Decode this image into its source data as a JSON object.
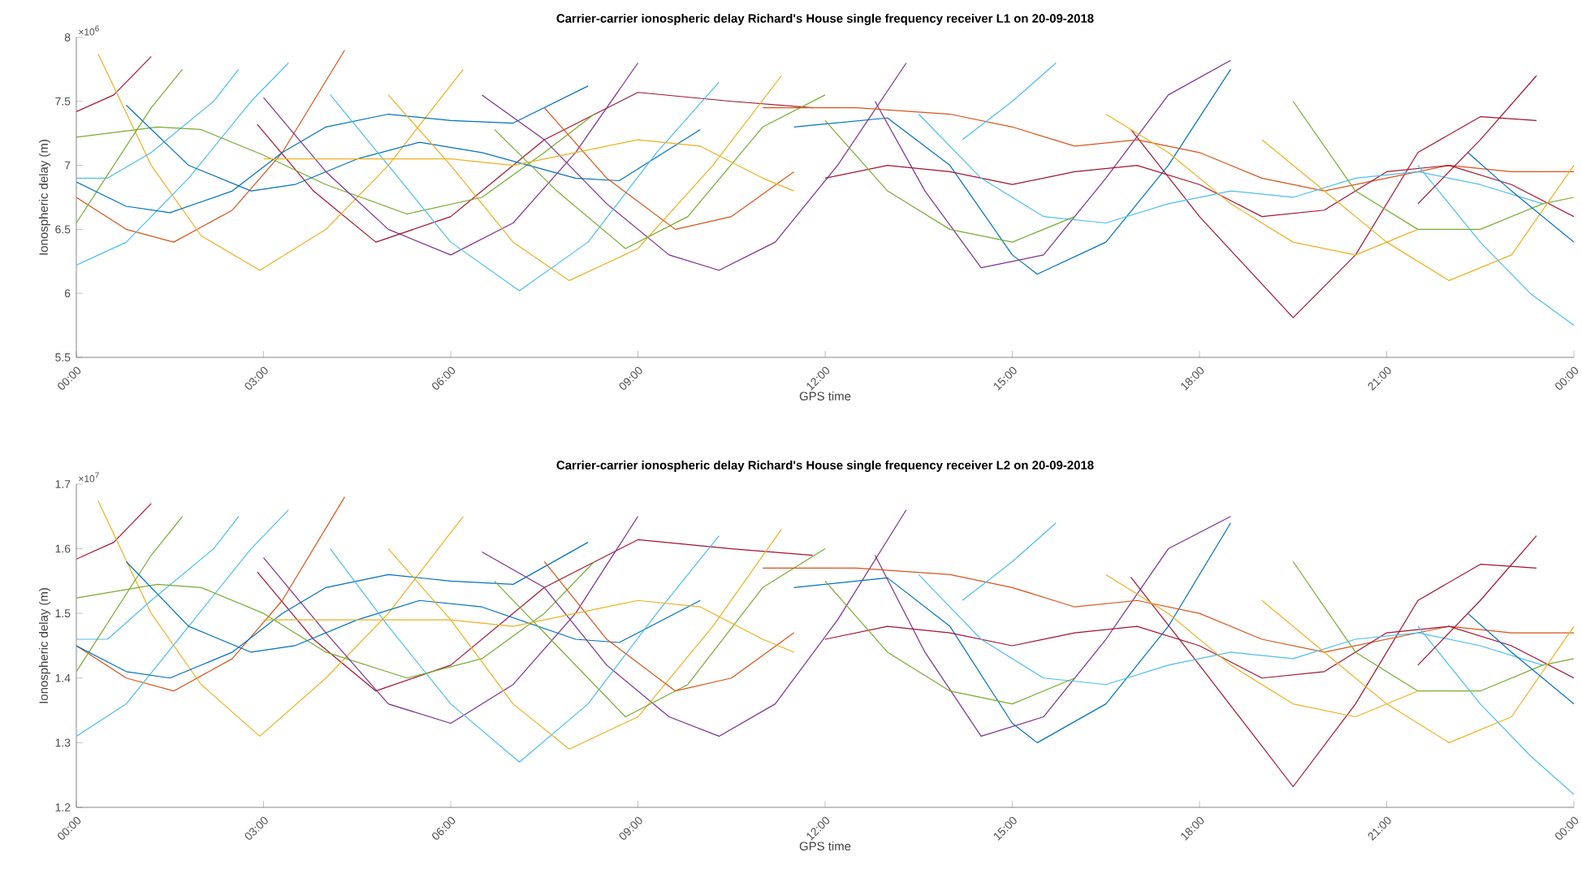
{
  "chart_data": [
    {
      "type": "line",
      "title": "Carrier-carrier ionospheric delay Richard's House single frequency receiver L1 on 20-09-2018",
      "xlabel": "GPS time",
      "ylabel": "Ionospheric delay (m)",
      "annotations": [
        "×10$^{6}$"
      ],
      "xlim": [
        0,
        24
      ],
      "xticks": [
        {
          "value": 0,
          "label": "00:00"
        },
        {
          "value": 3,
          "label": "03:00"
        },
        {
          "value": 6,
          "label": "06:00"
        },
        {
          "value": 9,
          "label": "09:00"
        },
        {
          "value": 12,
          "label": "12:00"
        },
        {
          "value": 15,
          "label": "15:00"
        },
        {
          "value": 18,
          "label": "18:00"
        },
        {
          "value": 21,
          "label": "21:00"
        },
        {
          "value": 24,
          "label": "00:00"
        }
      ],
      "ylim": [
        5.5,
        8
      ],
      "yticks": [
        5.5,
        6,
        6.5,
        7,
        7.5,
        8
      ],
      "series": [
        {
          "color": "#a2142f",
          "x": [
            2.9,
            3.8,
            4.8,
            6,
            7.5,
            9,
            10.5,
            11.8
          ],
          "values": [
            7.32,
            6.8,
            6.4,
            6.6,
            7.2,
            7.57,
            7.5,
            7.45
          ]
        },
        {
          "color": "#a2142f",
          "x": [
            16.9,
            18,
            19.5,
            20.5,
            21.5,
            22.5,
            23.4
          ],
          "values": [
            7.28,
            6.6,
            5.81,
            6.3,
            7.1,
            7.38,
            7.35
          ]
        },
        {
          "color": "#d95319",
          "x": [
            0,
            0.8,
            1.56,
            2.5,
            3.3,
            4.3
          ],
          "values": [
            6.75,
            6.5,
            6.4,
            6.65,
            7.1,
            7.9
          ]
        },
        {
          "color": "#a2142f",
          "x": [
            0,
            0.6,
            1.2
          ],
          "values": [
            7.42,
            7.55,
            7.85
          ]
        },
        {
          "color": "#edb120",
          "x": [
            0.35,
            1.2,
            2,
            2.94,
            4,
            5,
            6.2
          ],
          "values": [
            7.87,
            7.0,
            6.45,
            6.18,
            6.5,
            7.0,
            7.75
          ]
        },
        {
          "color": "#4dbeee",
          "x": [
            0,
            0.8,
            1.8,
            2.8,
            3.4
          ],
          "values": [
            6.22,
            6.4,
            6.9,
            7.5,
            7.8
          ]
        },
        {
          "color": "#4dbeee",
          "x": [
            0,
            0.5,
            1.2,
            2.2,
            2.6
          ],
          "values": [
            6.9,
            6.9,
            7.1,
            7.5,
            7.75
          ]
        },
        {
          "color": "#77ac30",
          "x": [
            0,
            0.6,
            1.2,
            1.7
          ],
          "values": [
            6.55,
            7.0,
            7.45,
            7.75
          ]
        },
        {
          "color": "#77ac30",
          "x": [
            0,
            1.3,
            2,
            3,
            4,
            5.3,
            6.5,
            7.5,
            8.3
          ],
          "values": [
            7.22,
            7.3,
            7.28,
            7.08,
            6.85,
            6.62,
            6.75,
            7.1,
            7.4
          ]
        },
        {
          "color": "#0072bd",
          "x": [
            0.8,
            1.8,
            2.8,
            3.5,
            4.5,
            5.5,
            6.5,
            8,
            8.7,
            10
          ],
          "values": [
            7.47,
            7.0,
            6.8,
            6.85,
            7.05,
            7.18,
            7.1,
            6.9,
            6.88,
            7.28
          ]
        },
        {
          "color": "#0072bd",
          "x": [
            0,
            0.8,
            1.5,
            2.5,
            3.3,
            4,
            5,
            6,
            7,
            8.2
          ],
          "values": [
            6.87,
            6.68,
            6.63,
            6.8,
            7.1,
            7.3,
            7.4,
            7.35,
            7.33,
            7.62
          ]
        },
        {
          "color": "#7e2f8e",
          "x": [
            3,
            4,
            5,
            6,
            7,
            8,
            9
          ],
          "values": [
            7.53,
            6.95,
            6.5,
            6.3,
            6.55,
            7.1,
            7.8
          ]
        },
        {
          "color": "#7e2f8e",
          "x": [
            6.5,
            7.5,
            8.5,
            9.5,
            10.3,
            11.2,
            12.2,
            13.3
          ],
          "values": [
            7.55,
            7.2,
            6.7,
            6.3,
            6.18,
            6.4,
            7.0,
            7.8
          ]
        },
        {
          "color": "#4dbeee",
          "x": [
            4.07,
            5,
            6,
            7.1,
            8.2,
            9.3,
            10.3
          ],
          "values": [
            7.55,
            7.0,
            6.4,
            6.02,
            6.4,
            7.1,
            7.65
          ]
        },
        {
          "color": "#edb120",
          "x": [
            5,
            6,
            7,
            7.9,
            9,
            10.2,
            11.3
          ],
          "values": [
            7.55,
            7.0,
            6.4,
            6.1,
            6.35,
            7.0,
            7.7
          ]
        },
        {
          "color": "#77ac30",
          "x": [
            6.7,
            7.7,
            8.8,
            9.8,
            11,
            12
          ],
          "values": [
            7.28,
            6.8,
            6.35,
            6.6,
            7.3,
            7.55
          ]
        },
        {
          "color": "#d95319",
          "x": [
            7.5,
            8.5,
            9.6,
            10.5,
            11.5
          ],
          "values": [
            7.45,
            6.9,
            6.5,
            6.6,
            6.95
          ]
        },
        {
          "color": "#edb120",
          "x": [
            3,
            4,
            5,
            6,
            7,
            8,
            9,
            10,
            11,
            11.5
          ],
          "values": [
            7.05,
            7.05,
            7.05,
            7.05,
            7.0,
            7.1,
            7.2,
            7.15,
            6.9,
            6.8
          ]
        },
        {
          "color": "#0072bd",
          "x": [
            11.5,
            13,
            14,
            15,
            15.4,
            16.5,
            17.5,
            18.5
          ],
          "values": [
            7.3,
            7.37,
            7.0,
            6.3,
            6.15,
            6.4,
            7.0,
            7.75
          ]
        },
        {
          "color": "#7e2f8e",
          "x": [
            12.8,
            13.6,
            14.5,
            15.5,
            16.5,
            17.5,
            18.5
          ],
          "values": [
            7.5,
            6.8,
            6.2,
            6.3,
            6.9,
            7.55,
            7.82
          ]
        },
        {
          "color": "#d95319",
          "x": [
            11,
            12.5,
            14,
            15,
            16,
            17,
            18,
            19,
            20,
            21,
            22,
            23,
            24
          ],
          "values": [
            7.45,
            7.45,
            7.4,
            7.3,
            7.15,
            7.2,
            7.1,
            6.9,
            6.8,
            6.9,
            7.0,
            6.95,
            6.95
          ]
        },
        {
          "color": "#a2142f",
          "x": [
            12,
            13,
            14,
            15,
            16,
            17,
            18,
            19,
            20,
            21,
            22,
            23,
            24
          ],
          "values": [
            6.9,
            7.0,
            6.95,
            6.85,
            6.95,
            7.0,
            6.85,
            6.6,
            6.65,
            6.95,
            7.0,
            6.85,
            6.6
          ]
        },
        {
          "color": "#4dbeee",
          "x": [
            13.5,
            14.5,
            15.5,
            16.5,
            17.5,
            18.5,
            19.5,
            20.5,
            21.5,
            22.5,
            23.5
          ],
          "values": [
            7.4,
            6.9,
            6.6,
            6.55,
            6.7,
            6.8,
            6.75,
            6.9,
            6.95,
            6.85,
            6.7
          ]
        },
        {
          "color": "#77ac30",
          "x": [
            19.5,
            20.5,
            21.5,
            22.5,
            23.5,
            24
          ],
          "values": [
            7.5,
            6.8,
            6.5,
            6.5,
            6.7,
            6.75
          ]
        },
        {
          "color": "#edb120",
          "x": [
            19,
            20,
            21,
            22,
            23,
            24
          ],
          "values": [
            7.2,
            6.8,
            6.4,
            6.1,
            6.3,
            7.0
          ]
        },
        {
          "color": "#4dbeee",
          "x": [
            21.5,
            22.5,
            23.3,
            24
          ],
          "values": [
            7.0,
            6.4,
            6.0,
            5.75
          ]
        },
        {
          "color": "#0072bd",
          "x": [
            22.3,
            23,
            24
          ],
          "values": [
            7.1,
            6.8,
            6.4
          ]
        },
        {
          "color": "#edb120",
          "x": [
            16.5,
            17.5,
            18.5,
            19.5,
            20.5,
            21.5
          ],
          "values": [
            7.4,
            7.1,
            6.7,
            6.4,
            6.3,
            6.5
          ]
        },
        {
          "color": "#a2142f",
          "x": [
            21.5,
            22.5,
            23.4
          ],
          "values": [
            6.7,
            7.2,
            7.7
          ]
        },
        {
          "color": "#4dbeee",
          "x": [
            14.2,
            15,
            15.7
          ],
          "values": [
            7.2,
            7.5,
            7.8
          ]
        },
        {
          "color": "#77ac30",
          "x": [
            12,
            13,
            14,
            15,
            16
          ],
          "values": [
            7.35,
            6.8,
            6.5,
            6.4,
            6.6
          ]
        }
      ]
    },
    {
      "type": "line",
      "title": "Carrier-carrier ionospheric delay Richard's House single frequency receiver L2 on 20-09-2018",
      "xlabel": "GPS time",
      "ylabel": "Ionospheric delay (m)",
      "annotations": [
        "×10$^{7}$"
      ],
      "xlim": [
        0,
        24
      ],
      "xticks": [
        {
          "value": 0,
          "label": "00:00"
        },
        {
          "value": 3,
          "label": "03:00"
        },
        {
          "value": 6,
          "label": "06:00"
        },
        {
          "value": 9,
          "label": "09:00"
        },
        {
          "value": 12,
          "label": "12:00"
        },
        {
          "value": 15,
          "label": "15:00"
        },
        {
          "value": 18,
          "label": "18:00"
        },
        {
          "value": 21,
          "label": "21:00"
        },
        {
          "value": 24,
          "label": "00:00"
        }
      ],
      "ylim": [
        1.2,
        1.7
      ],
      "yticks": [
        1.2,
        1.3,
        1.4,
        1.5,
        1.6,
        1.7
      ],
      "series": [
        {
          "color": "#a2142f",
          "x": [
            2.9,
            3.8,
            4.8,
            6,
            7.5,
            9,
            10.5,
            11.8
          ],
          "values": [
            1.564,
            1.46,
            1.38,
            1.42,
            1.54,
            1.614,
            1.6,
            1.59
          ]
        },
        {
          "color": "#a2142f",
          "x": [
            16.9,
            18,
            19.5,
            20.5,
            21.5,
            22.5,
            23.4
          ],
          "values": [
            1.556,
            1.42,
            1.232,
            1.36,
            1.52,
            1.576,
            1.57
          ]
        },
        {
          "color": "#d95319",
          "x": [
            0,
            0.8,
            1.56,
            2.5,
            3.3,
            4.3
          ],
          "values": [
            1.45,
            1.4,
            1.38,
            1.43,
            1.52,
            1.68
          ]
        },
        {
          "color": "#a2142f",
          "x": [
            0,
            0.6,
            1.2
          ],
          "values": [
            1.584,
            1.61,
            1.67
          ]
        },
        {
          "color": "#edb120",
          "x": [
            0.35,
            1.2,
            2,
            2.94,
            4,
            5,
            6.2
          ],
          "values": [
            1.674,
            1.5,
            1.39,
            1.31,
            1.4,
            1.5,
            1.65
          ]
        },
        {
          "color": "#4dbeee",
          "x": [
            0,
            0.8,
            1.8,
            2.8,
            3.4
          ],
          "values": [
            1.31,
            1.36,
            1.48,
            1.6,
            1.66
          ]
        },
        {
          "color": "#4dbeee",
          "x": [
            0,
            0.5,
            1.2,
            2.2,
            2.6
          ],
          "values": [
            1.46,
            1.46,
            1.52,
            1.6,
            1.65
          ]
        },
        {
          "color": "#77ac30",
          "x": [
            0,
            0.6,
            1.2,
            1.7
          ],
          "values": [
            1.41,
            1.5,
            1.59,
            1.65
          ]
        },
        {
          "color": "#77ac30",
          "x": [
            0,
            1.3,
            2,
            3,
            4,
            5.3,
            6.5,
            7.5,
            8.3
          ],
          "values": [
            1.524,
            1.545,
            1.54,
            1.5,
            1.44,
            1.4,
            1.43,
            1.5,
            1.58
          ]
        },
        {
          "color": "#0072bd",
          "x": [
            0.8,
            1.8,
            2.8,
            3.5,
            4.5,
            5.5,
            6.5,
            8,
            8.7,
            10
          ],
          "values": [
            1.58,
            1.48,
            1.44,
            1.45,
            1.49,
            1.52,
            1.51,
            1.46,
            1.455,
            1.52
          ]
        },
        {
          "color": "#0072bd",
          "x": [
            0,
            0.8,
            1.5,
            2.5,
            3.3,
            4,
            5,
            6,
            7,
            8.2
          ],
          "values": [
            1.45,
            1.41,
            1.4,
            1.44,
            1.5,
            1.54,
            1.56,
            1.55,
            1.545,
            1.61
          ]
        },
        {
          "color": "#7e2f8e",
          "x": [
            3,
            4,
            5,
            6,
            7,
            8,
            9
          ],
          "values": [
            1.586,
            1.47,
            1.36,
            1.33,
            1.39,
            1.5,
            1.65
          ]
        },
        {
          "color": "#7e2f8e",
          "x": [
            6.5,
            7.5,
            8.5,
            9.5,
            10.3,
            11.2,
            12.2,
            13.3
          ],
          "values": [
            1.595,
            1.54,
            1.42,
            1.34,
            1.31,
            1.36,
            1.49,
            1.66
          ]
        },
        {
          "color": "#4dbeee",
          "x": [
            4.07,
            5,
            6,
            7.1,
            8.2,
            9.3,
            10.3
          ],
          "values": [
            1.6,
            1.48,
            1.36,
            1.27,
            1.36,
            1.5,
            1.62
          ]
        },
        {
          "color": "#edb120",
          "x": [
            5,
            6,
            7,
            7.9,
            9,
            10.2,
            11.3
          ],
          "values": [
            1.6,
            1.49,
            1.36,
            1.29,
            1.34,
            1.48,
            1.63
          ]
        },
        {
          "color": "#77ac30",
          "x": [
            6.7,
            7.7,
            8.8,
            9.8,
            11,
            12
          ],
          "values": [
            1.55,
            1.45,
            1.34,
            1.39,
            1.54,
            1.6
          ]
        },
        {
          "color": "#d95319",
          "x": [
            7.5,
            8.5,
            9.6,
            10.5,
            11.5
          ],
          "values": [
            1.58,
            1.46,
            1.38,
            1.4,
            1.47
          ]
        },
        {
          "color": "#edb120",
          "x": [
            3,
            4,
            5,
            6,
            7,
            8,
            9,
            10,
            11,
            11.5
          ],
          "values": [
            1.49,
            1.49,
            1.49,
            1.49,
            1.48,
            1.5,
            1.52,
            1.51,
            1.46,
            1.44
          ]
        },
        {
          "color": "#0072bd",
          "x": [
            11.5,
            13,
            14,
            15,
            15.4,
            16.5,
            17.5,
            18.5
          ],
          "values": [
            1.54,
            1.555,
            1.48,
            1.33,
            1.3,
            1.36,
            1.48,
            1.64
          ]
        },
        {
          "color": "#7e2f8e",
          "x": [
            12.8,
            13.6,
            14.5,
            15.5,
            16.5,
            17.5,
            18.5
          ],
          "values": [
            1.59,
            1.44,
            1.31,
            1.34,
            1.46,
            1.6,
            1.65
          ]
        },
        {
          "color": "#d95319",
          "x": [
            11,
            12.5,
            14,
            15,
            16,
            17,
            18,
            19,
            20,
            21,
            22,
            23,
            24
          ],
          "values": [
            1.57,
            1.57,
            1.56,
            1.54,
            1.51,
            1.52,
            1.5,
            1.46,
            1.44,
            1.46,
            1.48,
            1.47,
            1.47
          ]
        },
        {
          "color": "#a2142f",
          "x": [
            12,
            13,
            14,
            15,
            16,
            17,
            18,
            19,
            20,
            21,
            22,
            23,
            24
          ],
          "values": [
            1.46,
            1.48,
            1.47,
            1.45,
            1.47,
            1.48,
            1.45,
            1.4,
            1.41,
            1.47,
            1.48,
            1.45,
            1.4
          ]
        },
        {
          "color": "#4dbeee",
          "x": [
            13.5,
            14.5,
            15.5,
            16.5,
            17.5,
            18.5,
            19.5,
            20.5,
            21.5,
            22.5,
            23.5
          ],
          "values": [
            1.56,
            1.46,
            1.4,
            1.39,
            1.42,
            1.44,
            1.43,
            1.46,
            1.47,
            1.45,
            1.42
          ]
        },
        {
          "color": "#77ac30",
          "x": [
            19.5,
            20.5,
            21.5,
            22.5,
            23.5,
            24
          ],
          "values": [
            1.58,
            1.44,
            1.38,
            1.38,
            1.42,
            1.43
          ]
        },
        {
          "color": "#edb120",
          "x": [
            19,
            20,
            21,
            22,
            23,
            24
          ],
          "values": [
            1.52,
            1.44,
            1.36,
            1.3,
            1.34,
            1.48
          ]
        },
        {
          "color": "#4dbeee",
          "x": [
            21.5,
            22.5,
            23.3,
            24
          ],
          "values": [
            1.48,
            1.36,
            1.28,
            1.22
          ]
        },
        {
          "color": "#0072bd",
          "x": [
            22.3,
            23,
            24
          ],
          "values": [
            1.5,
            1.44,
            1.36
          ]
        },
        {
          "color": "#edb120",
          "x": [
            16.5,
            17.5,
            18.5,
            19.5,
            20.5,
            21.5
          ],
          "values": [
            1.56,
            1.5,
            1.42,
            1.36,
            1.34,
            1.38
          ]
        },
        {
          "color": "#a2142f",
          "x": [
            21.5,
            22.5,
            23.4
          ],
          "values": [
            1.42,
            1.52,
            1.62
          ]
        },
        {
          "color": "#4dbeee",
          "x": [
            14.2,
            15,
            15.7
          ],
          "values": [
            1.52,
            1.58,
            1.64
          ]
        },
        {
          "color": "#77ac30",
          "x": [
            12,
            13,
            14,
            15,
            16
          ],
          "values": [
            1.55,
            1.44,
            1.38,
            1.36,
            1.4
          ]
        }
      ]
    }
  ]
}
